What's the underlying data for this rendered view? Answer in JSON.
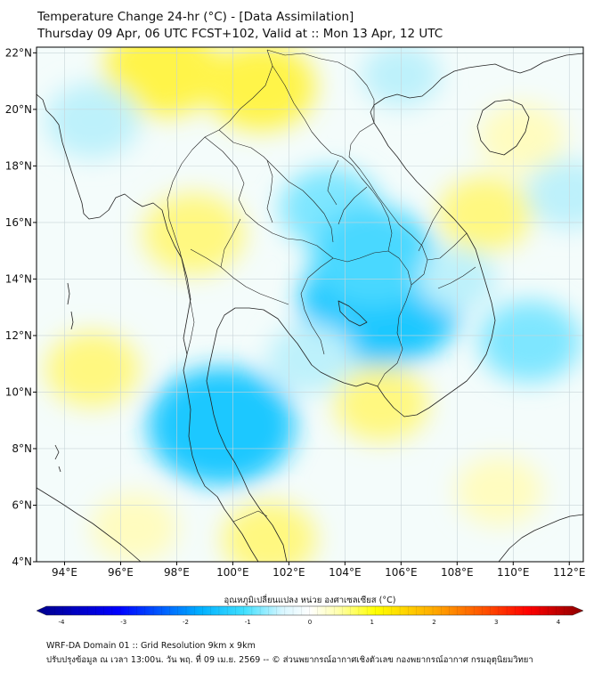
{
  "header": {
    "title": "Temperature Change 24-hr (°C) - [Data Assimilation]",
    "subtitle": "Thursday 09 Apr, 06 UTC FCST+102, Valid at :: Mon 13 Apr, 12 UTC"
  },
  "map": {
    "lon_range": [
      93,
      112.5
    ],
    "lat_range": [
      4,
      22.2
    ],
    "lat_ticks": [
      {
        "value": 22,
        "label": "22°N"
      },
      {
        "value": 20,
        "label": "20°N"
      },
      {
        "value": 18,
        "label": "18°N"
      },
      {
        "value": 16,
        "label": "16°N"
      },
      {
        "value": 14,
        "label": "14°N"
      },
      {
        "value": 12,
        "label": "12°N"
      },
      {
        "value": 10,
        "label": "10°N"
      },
      {
        "value": 8,
        "label": "8°N"
      },
      {
        "value": 6,
        "label": "6°N"
      },
      {
        "value": 4,
        "label": "4°N"
      }
    ],
    "lon_ticks": [
      {
        "value": 94,
        "label": "94°E"
      },
      {
        "value": 96,
        "label": "96°E"
      },
      {
        "value": 98,
        "label": "98°E"
      },
      {
        "value": 100,
        "label": "100°E"
      },
      {
        "value": 102,
        "label": "102°E"
      },
      {
        "value": 104,
        "label": "104°E"
      },
      {
        "value": 106,
        "label": "106°E"
      },
      {
        "value": 108,
        "label": "108°E"
      },
      {
        "value": 110,
        "label": "110°E"
      },
      {
        "value": 112,
        "label": "112°E"
      }
    ],
    "field_anomalies": [
      {
        "name": "north-warm",
        "lon": 97.5,
        "lat": 21.4,
        "value": 0.9
      },
      {
        "name": "north-myanmar-warm",
        "lon": 101.0,
        "lat": 20.8,
        "value": 0.8
      },
      {
        "name": "west-myanmar-cool",
        "lon": 95.0,
        "lat": 19.6,
        "value": -0.6
      },
      {
        "name": "central-thai-warm",
        "lon": 98.6,
        "lat": 15.6,
        "value": 0.7
      },
      {
        "name": "andaman-warm",
        "lon": 95.0,
        "lat": 10.8,
        "value": 0.6
      },
      {
        "name": "east-thai-cool",
        "lon": 103.5,
        "lat": 16.5,
        "value": -0.7
      },
      {
        "name": "cambodia-cool",
        "lon": 105.3,
        "lat": 13.2,
        "value": -1.5
      },
      {
        "name": "cambodia-cool-north",
        "lon": 105.0,
        "lat": 14.8,
        "value": -1.0
      },
      {
        "name": "gulf-cool",
        "lon": 102.8,
        "lat": 11.2,
        "value": -0.5
      },
      {
        "name": "peninsula-cool",
        "lon": 99.6,
        "lat": 8.8,
        "value": -1.3
      },
      {
        "name": "south-china-sea-warm",
        "lon": 109.0,
        "lat": 16.3,
        "value": 0.6
      },
      {
        "name": "scs-cool",
        "lon": 110.6,
        "lat": 11.8,
        "value": -0.7
      },
      {
        "name": "scs-cool-2",
        "lon": 108.0,
        "lat": 14.0,
        "value": -0.4
      },
      {
        "name": "hainan-warm",
        "lon": 110.3,
        "lat": 19.0,
        "value": 0.5
      },
      {
        "name": "far-east-cool",
        "lon": 112.0,
        "lat": 17.0,
        "value": -0.5
      },
      {
        "name": "south-warm",
        "lon": 101.3,
        "lat": 4.8,
        "value": 0.6
      },
      {
        "name": "malaysia-warm",
        "lon": 96.5,
        "lat": 5.2,
        "value": 0.5
      },
      {
        "name": "southeast-warm",
        "lon": 109.5,
        "lat": 6.5,
        "value": 0.5
      },
      {
        "name": "mekong-delta-warm",
        "lon": 105.3,
        "lat": 9.6,
        "value": 0.6
      },
      {
        "name": "yunnan-cool",
        "lon": 106.0,
        "lat": 21.2,
        "value": -0.4
      }
    ]
  },
  "colorbar": {
    "title": "อุณหภูมิเปลี่ยนแปลง หน่วย องศาเซลเซียส (°C)",
    "min": -4,
    "max": 4,
    "tick_labels": [
      "-4",
      "-3",
      "-2",
      "-1",
      "0",
      "1",
      "2",
      "3",
      "4"
    ],
    "colors": {
      "dark_blue": "#00008b",
      "blue": "#0000ff",
      "light_blue": "#00b0ff",
      "cyan": "#40e0ff",
      "pale_cyan": "#d8f6ff",
      "white": "#ffffff",
      "pale_yellow": "#ffffb0",
      "yellow": "#ffff00",
      "orange": "#ff9000",
      "red": "#ff0000",
      "dark_red": "#8b0000"
    }
  },
  "footer": {
    "line1": "WRF-DA Domain 01 :: Grid Resolution 9km x 9km",
    "line2": "ปรับปรุงข้อมูล ณ เวลา 13:00น. วัน พฤ. ที่ 09 เม.ย. 2569 -- © ส่วนพยากรณ์อากาศเชิงตัวเลข กองพยากรณ์อากาศ กรมอุตุนิยมวิทยา"
  }
}
